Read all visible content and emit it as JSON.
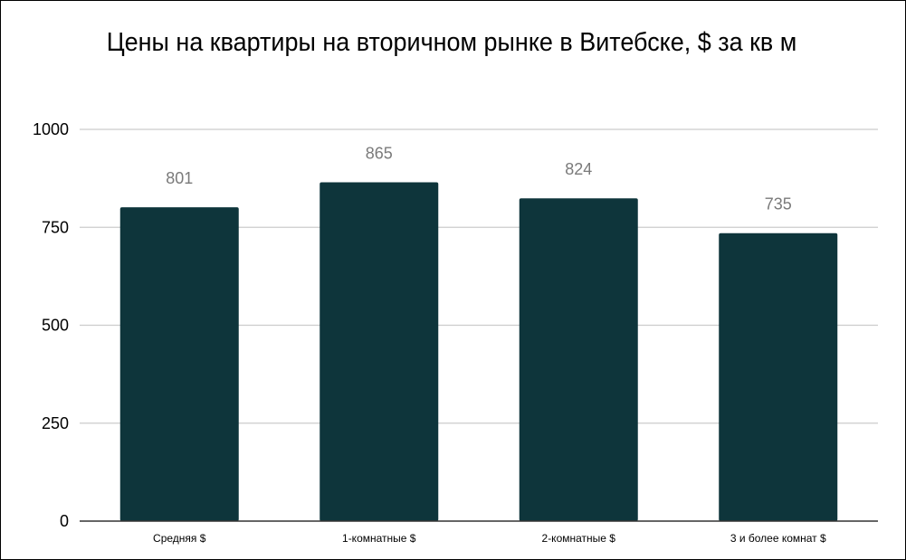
{
  "chart_data": {
    "type": "bar",
    "title": "Цены на квартиры на вторичном рынке в Витебске, $ за кв м",
    "xlabel": "",
    "ylabel": "",
    "categories": [
      "Средняя $",
      "1-комнатные $",
      "2-комнатные $",
      "3 и более комнат $"
    ],
    "values": [
      801,
      865,
      824,
      735
    ],
    "data_labels": [
      "801",
      "865",
      "824",
      "735"
    ],
    "ylim": [
      0,
      1000
    ],
    "yticks": [
      0,
      250,
      500,
      750,
      1000
    ],
    "ytick_labels": [
      "0",
      "250",
      "500",
      "750",
      "1000"
    ],
    "grid": true,
    "legend": "none",
    "colors": {
      "bar": "#0e353b",
      "grid": "#cccccc",
      "axis": "#333333",
      "data_label": "#7a7a7a"
    }
  }
}
